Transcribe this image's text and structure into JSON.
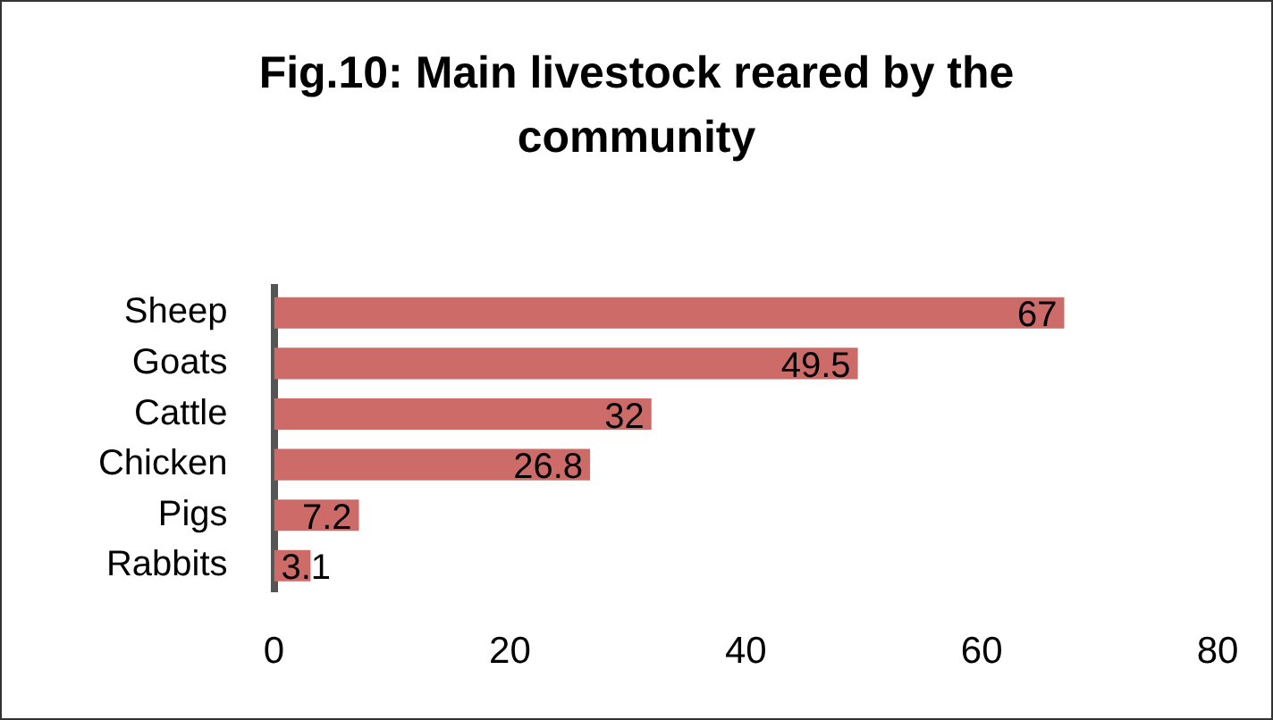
{
  "chart_data": {
    "type": "bar",
    "orientation": "horizontal",
    "title": "Fig.10: Main livestock reared by the community",
    "categories": [
      "Sheep",
      "Goats",
      "Cattle",
      "Chicken",
      "Pigs",
      "Rabbits"
    ],
    "values": [
      67,
      49.5,
      32,
      26.8,
      7.2,
      3.1
    ],
    "color": "#cd6b69",
    "xlim": [
      0,
      80
    ],
    "xticks": [
      0,
      20,
      40,
      60,
      80
    ],
    "grid": false,
    "legend": false,
    "data_labels": true
  }
}
